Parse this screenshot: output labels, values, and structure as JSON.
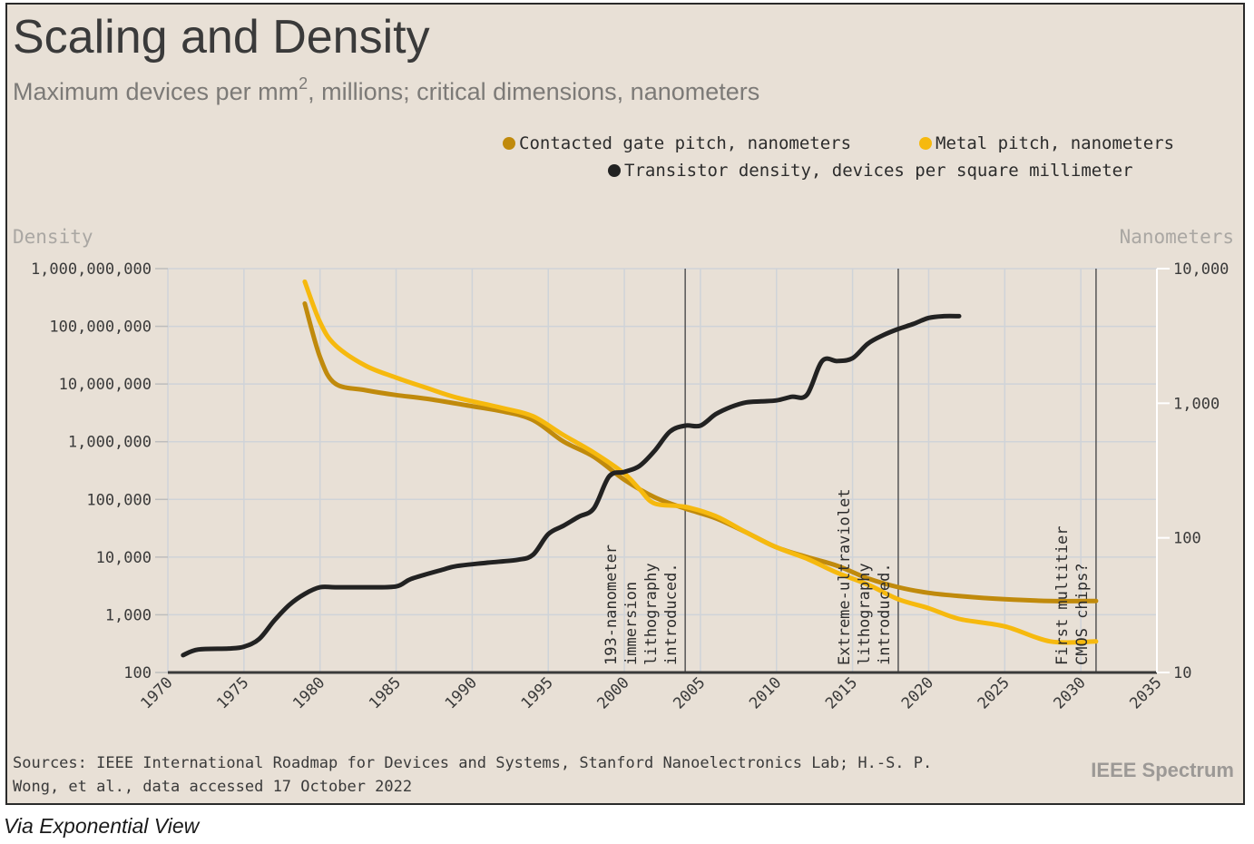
{
  "title": "Scaling and Density",
  "subtitle_pre": "Maximum devices per mm",
  "subtitle_sup": "2",
  "subtitle_post": ", millions; critical dimensions, nanometers",
  "left_axis_title": "Density",
  "right_axis_title": "Nanometers",
  "source_line1": "Sources: IEEE International Roadmap for Devices and Systems, Stanford Nanoelectronics Lab; H.-S. P.",
  "source_line2": "Wong, et al., data accessed 17 October 2022",
  "brand": "IEEE Spectrum",
  "caption": "Via Exponential View",
  "chart_data": {
    "type": "line",
    "x_range": [
      1970,
      2035
    ],
    "x_ticks": [
      "1970",
      "1975",
      "1980",
      "1985",
      "1990",
      "1995",
      "2000",
      "2005",
      "2010",
      "2015",
      "2020",
      "2025",
      "2030",
      "2035"
    ],
    "left_axis": {
      "scale": "log",
      "range": [
        100,
        1000000000
      ],
      "ticks": [
        "1,000,000,000",
        "100,000,000",
        "10,000,000",
        "1,000,000",
        "100,000",
        "10,000",
        "1,000",
        "100"
      ]
    },
    "right_axis": {
      "scale": "log",
      "range": [
        10,
        10000
      ],
      "ticks": [
        "10,000",
        "1,000",
        "100",
        "10"
      ]
    },
    "grid": true,
    "legend_position": "top-right",
    "series": [
      {
        "name": "Contacted gate pitch, nanometers",
        "axis": "right",
        "color": "#c08a0c",
        "x": [
          1979,
          1980,
          1981,
          1983,
          1985,
          1987,
          1990,
          1992,
          1994,
          1996,
          1998,
          2000,
          2002,
          2004,
          2006,
          2008,
          2010,
          2012,
          2014,
          2016,
          2018,
          2020,
          2022,
          2025,
          2028,
          2031
        ],
        "y": [
          5500,
          2200,
          1400,
          1250,
          1150,
          1080,
          950,
          870,
          750,
          520,
          400,
          270,
          200,
          165,
          140,
          110,
          85,
          72,
          62,
          50,
          43,
          39,
          37,
          35,
          34,
          34
        ]
      },
      {
        "name": "Metal pitch, nanometers",
        "axis": "right",
        "color": "#f6b90e",
        "x": [
          1979,
          1980,
          1981,
          1983,
          1985,
          1987,
          1989,
          1992,
          1994,
          1996,
          1998,
          2000,
          2001,
          2002,
          2004,
          2006,
          2008,
          2010,
          2012,
          2014,
          2016,
          2018,
          2020,
          2022,
          2025,
          2028,
          2031
        ],
        "y": [
          8000,
          4000,
          2700,
          1900,
          1550,
          1300,
          1100,
          920,
          800,
          580,
          430,
          300,
          230,
          180,
          170,
          145,
          110,
          85,
          70,
          55,
          45,
          35,
          30,
          25,
          22,
          17,
          17
        ]
      },
      {
        "name": "Transistor density, devices per square millimeter",
        "axis": "left",
        "color": "#222222",
        "x": [
          1971,
          1972,
          1974,
          1975,
          1976,
          1977,
          1978,
          1979,
          1980,
          1981,
          1983,
          1985,
          1986,
          1988,
          1989,
          1991,
          1993,
          1994,
          1995,
          1996,
          1997,
          1998,
          1999,
          2000,
          2001,
          2002,
          2003,
          2004,
          2005,
          2006,
          2007,
          2008,
          2009,
          2010,
          2011,
          2012,
          2013,
          2014,
          2015,
          2016,
          2017,
          2018,
          2019,
          2020,
          2021,
          2022
        ],
        "y": [
          200,
          250,
          260,
          280,
          380,
          800,
          1500,
          2300,
          3000,
          3000,
          3000,
          3100,
          4200,
          6000,
          7000,
          8000,
          9000,
          11000,
          25000,
          35000,
          50000,
          70000,
          250000,
          300000,
          380000,
          700000,
          1500000,
          1900000,
          1900000,
          3000000,
          4000000,
          4800000,
          5000000,
          5200000,
          6000000,
          6500000,
          25000000,
          25000000,
          28000000,
          50000000,
          70000000,
          90000000,
          110000000,
          140000000,
          150000000,
          150000000
        ]
      }
    ],
    "annotations": [
      {
        "x": 2004.0,
        "label": "193-nanometer immersion lithography introduced."
      },
      {
        "x": 2018.0,
        "label": "Extreme-ultraviolet lithography introduced."
      },
      {
        "x": 2031.0,
        "label": "First multitier CMOS chips?"
      }
    ]
  },
  "annotation_lines": [
    [
      "193-nanometer",
      "immersion",
      "lithography",
      "introduced."
    ],
    [
      "Extreme-ultraviolet",
      "lithography",
      "introduced."
    ],
    [
      "First multitier",
      "CMOS chips?"
    ]
  ]
}
